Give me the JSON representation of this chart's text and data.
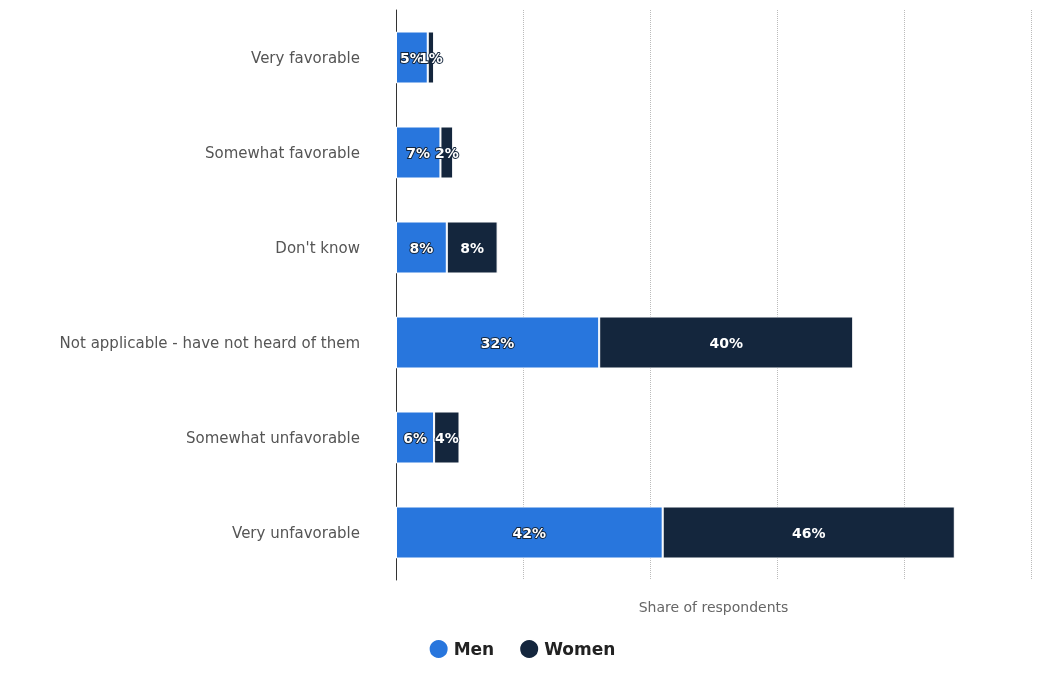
{
  "chart_data": {
    "type": "bar",
    "orientation": "horizontal",
    "stacked": true,
    "categories": [
      "Very favorable",
      "Somewhat favorable",
      "Don't know",
      "Not applicable - have not heard of them",
      "Somewhat unfavorable",
      "Very unfavorable"
    ],
    "series": [
      {
        "name": "Men",
        "color": "#2876dd",
        "values": [
          5,
          7,
          8,
          32,
          6,
          42
        ],
        "value_labels": [
          "5%",
          "7%",
          "8%",
          "32%",
          "6%",
          "42%"
        ]
      },
      {
        "name": "Women",
        "color": "#14263d",
        "values": [
          1,
          2,
          8,
          40,
          4,
          46
        ],
        "value_labels": [
          "1%",
          "2%",
          "8%",
          "40%",
          "4%",
          "46%"
        ]
      }
    ],
    "xlabel": "Share of respondents",
    "grid": "x",
    "legend": "bottom",
    "tick_labels": "y"
  }
}
